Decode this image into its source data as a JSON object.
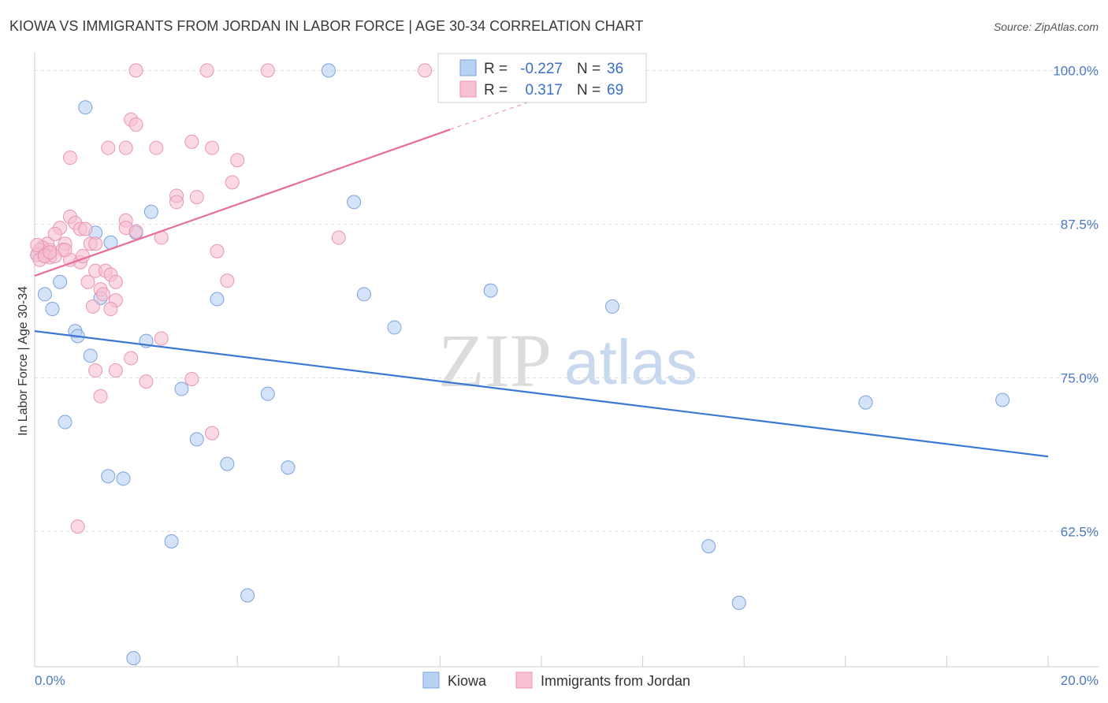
{
  "title": "KIOWA VS IMMIGRANTS FROM JORDAN IN LABOR FORCE | AGE 30-34 CORRELATION CHART",
  "source": "Source: ZipAtlas.com",
  "watermark": {
    "zip": "ZIP",
    "atlas": "atlas"
  },
  "colors": {
    "kiowa_fill": "#b8d0f2",
    "kiowa_stroke": "#7aa3dc",
    "kiowa_line": "#3a78d4",
    "jordan_fill": "#f6bfd2",
    "jordan_stroke": "#e995b3",
    "jordan_line": "#e86d99",
    "grid": "#dddddd",
    "tick_label": "#4a78c2"
  },
  "legend": {
    "rows": [
      {
        "r_label": "R =",
        "r_value": "-0.227",
        "n_label": "N =",
        "n_value": "36"
      },
      {
        "r_label": "R =",
        "r_value": "0.317",
        "n_label": "N =",
        "n_value": "69"
      }
    ]
  },
  "chart_data": {
    "type": "scatter",
    "xlabel": "",
    "ylabel": "In Labor Force | Age 30-34",
    "xlim": [
      0,
      20
    ],
    "ylim": [
      51.5,
      101.5
    ],
    "x_tick_labels": [
      "0.0%",
      "20.0%"
    ],
    "y_ticks": [
      100,
      87.5,
      75,
      62.5
    ],
    "y_tick_labels": [
      "100.0%",
      "87.5%",
      "75.0%",
      "62.5%"
    ],
    "grid": true,
    "legend_position": "top-center",
    "series": [
      {
        "name": "Kiowa",
        "trend": {
          "x": [
            0,
            20
          ],
          "y": [
            78.8,
            68.6
          ]
        },
        "points": [
          [
            1.0,
            97.0
          ],
          [
            5.8,
            100.0
          ],
          [
            2.3,
            88.5
          ],
          [
            6.3,
            89.3
          ],
          [
            2.0,
            86.8
          ],
          [
            1.5,
            86.0
          ],
          [
            0.2,
            81.8
          ],
          [
            0.35,
            80.6
          ],
          [
            0.5,
            82.8
          ],
          [
            0.8,
            78.8
          ],
          [
            0.85,
            78.4
          ],
          [
            1.3,
            81.5
          ],
          [
            1.2,
            86.8
          ],
          [
            3.6,
            81.4
          ],
          [
            6.5,
            81.8
          ],
          [
            7.1,
            79.1
          ],
          [
            9.0,
            82.1
          ],
          [
            11.4,
            80.8
          ],
          [
            2.2,
            78.0
          ],
          [
            1.1,
            76.8
          ],
          [
            2.9,
            74.1
          ],
          [
            4.6,
            73.7
          ],
          [
            0.6,
            71.4
          ],
          [
            3.2,
            70.0
          ],
          [
            3.8,
            68.0
          ],
          [
            5.0,
            67.7
          ],
          [
            1.45,
            67.0
          ],
          [
            1.75,
            66.8
          ],
          [
            2.7,
            61.7
          ],
          [
            4.2,
            57.3
          ],
          [
            13.3,
            61.3
          ],
          [
            13.9,
            56.7
          ],
          [
            16.4,
            73.0
          ],
          [
            19.1,
            73.2
          ],
          [
            1.95,
            52.2
          ],
          [
            0.05,
            85.0
          ]
        ]
      },
      {
        "name": "Immigrants from Jordan",
        "trend": {
          "x": [
            0,
            8.2
          ],
          "y": [
            83.3,
            95.2
          ]
        },
        "trend_dashed": {
          "x": [
            8.2,
            9.8
          ],
          "y": [
            95.2,
            97.5
          ]
        },
        "points": [
          [
            2.0,
            100.0
          ],
          [
            3.4,
            100.0
          ],
          [
            4.6,
            100.0
          ],
          [
            7.7,
            100.0
          ],
          [
            1.9,
            96.0
          ],
          [
            2.0,
            95.6
          ],
          [
            0.7,
            92.9
          ],
          [
            1.45,
            93.7
          ],
          [
            1.8,
            93.7
          ],
          [
            2.4,
            93.7
          ],
          [
            3.1,
            94.2
          ],
          [
            3.5,
            93.7
          ],
          [
            4.0,
            92.7
          ],
          [
            3.9,
            90.9
          ],
          [
            2.8,
            89.8
          ],
          [
            2.8,
            89.3
          ],
          [
            3.2,
            89.7
          ],
          [
            0.7,
            88.1
          ],
          [
            0.8,
            87.6
          ],
          [
            0.9,
            87.1
          ],
          [
            1.0,
            87.1
          ],
          [
            0.5,
            87.2
          ],
          [
            0.4,
            86.7
          ],
          [
            1.8,
            87.8
          ],
          [
            1.8,
            87.2
          ],
          [
            2.0,
            86.9
          ],
          [
            2.5,
            86.4
          ],
          [
            1.1,
            85.9
          ],
          [
            1.2,
            85.9
          ],
          [
            0.6,
            85.9
          ],
          [
            0.3,
            85.4
          ],
          [
            0.25,
            85.9
          ],
          [
            0.15,
            85.6
          ],
          [
            0.1,
            85.4
          ],
          [
            0.05,
            85.0
          ],
          [
            0.2,
            85.0
          ],
          [
            0.3,
            84.8
          ],
          [
            0.7,
            84.6
          ],
          [
            0.9,
            84.4
          ],
          [
            0.95,
            84.9
          ],
          [
            0.55,
            85.4
          ],
          [
            3.6,
            85.3
          ],
          [
            6.0,
            86.4
          ],
          [
            1.2,
            83.7
          ],
          [
            1.4,
            83.7
          ],
          [
            1.5,
            83.4
          ],
          [
            1.6,
            82.8
          ],
          [
            1.05,
            82.8
          ],
          [
            1.3,
            82.2
          ],
          [
            1.35,
            81.8
          ],
          [
            1.6,
            81.3
          ],
          [
            1.15,
            80.8
          ],
          [
            1.5,
            80.6
          ],
          [
            3.8,
            82.9
          ],
          [
            2.5,
            78.2
          ],
          [
            1.9,
            76.6
          ],
          [
            1.2,
            75.6
          ],
          [
            1.6,
            75.6
          ],
          [
            2.2,
            74.7
          ],
          [
            3.1,
            74.9
          ],
          [
            1.3,
            73.5
          ],
          [
            3.5,
            70.5
          ],
          [
            0.85,
            62.9
          ],
          [
            0.1,
            84.6
          ],
          [
            0.2,
            84.9
          ],
          [
            0.4,
            84.9
          ],
          [
            0.6,
            85.4
          ],
          [
            0.05,
            85.8
          ],
          [
            0.3,
            85.2
          ]
        ]
      }
    ]
  }
}
